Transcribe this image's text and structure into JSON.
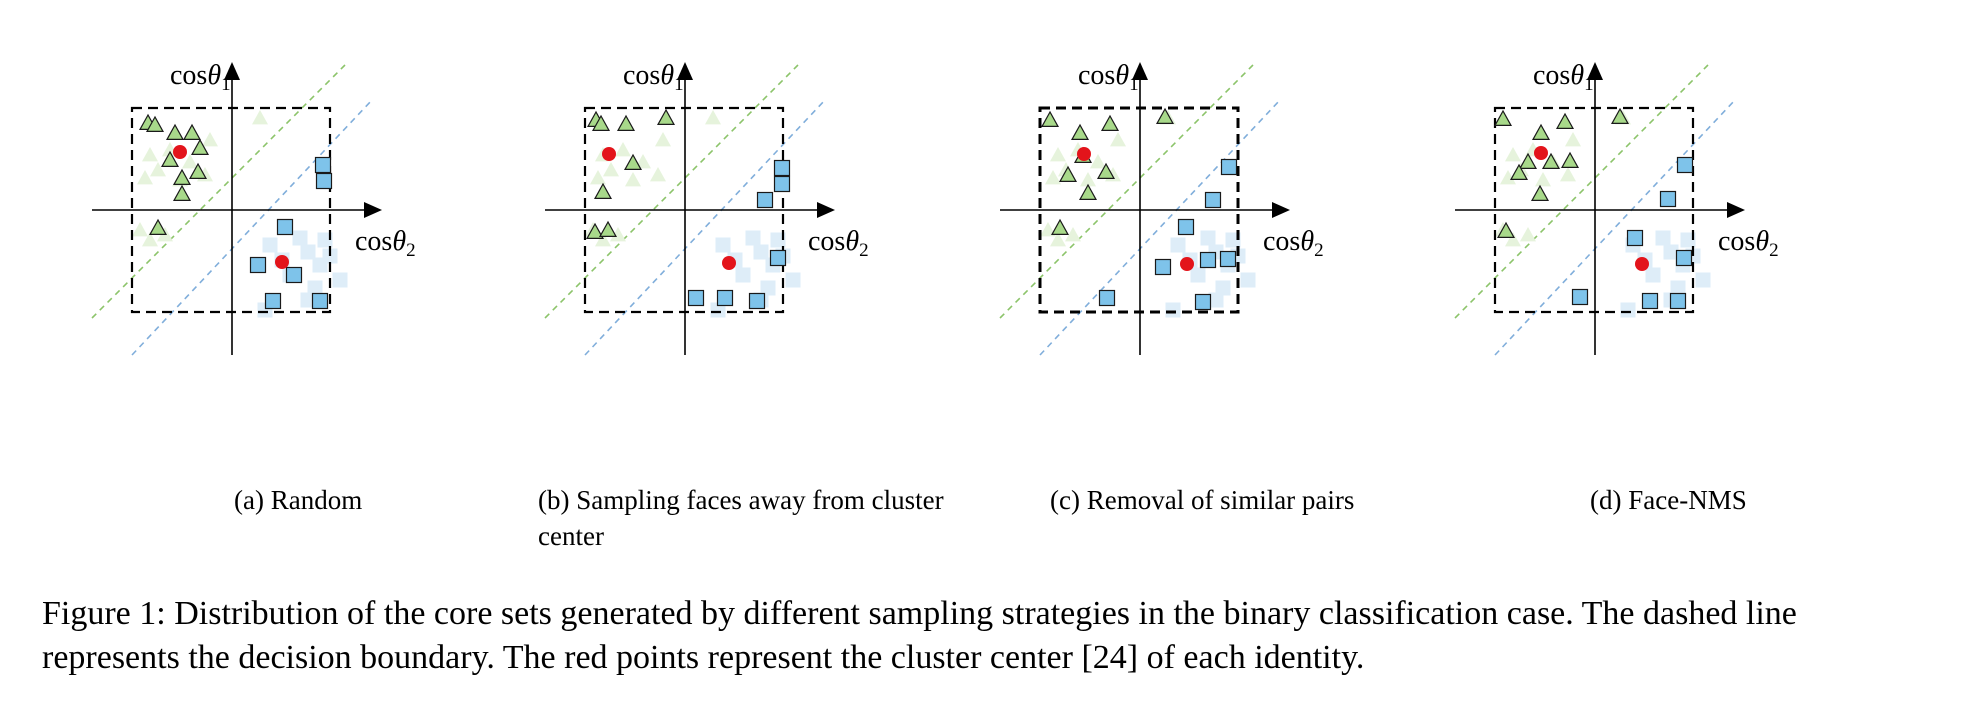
{
  "axis": {
    "y_label": "cos",
    "y_theta": "θ",
    "y_sub": "1",
    "x_label": "cos",
    "x_theta": "θ",
    "x_sub": "2"
  },
  "colors": {
    "triangle": "#a8d98a",
    "square": "#7ec3ea",
    "center": "#e3141b",
    "ghost_tri": "#e6f3dc",
    "ghost_sq": "#deedf8",
    "boundary_green": "#8cc46a",
    "boundary_blue": "#80aedb"
  },
  "icons": {
    "identity_1": "triangle-marker",
    "identity_2": "square-marker",
    "cluster_center": "red-dot"
  },
  "panels": [
    {
      "caption": "(a) Random"
    },
    {
      "caption": "(b) Sampling faces away from cluster center"
    },
    {
      "caption": "(c) Removal of similar pairs"
    },
    {
      "caption": "(d) Face-NMS"
    }
  ],
  "caption": "Figure 1: Distribution of the core sets generated by different sampling strategies in the binary classification case. The dashed line represents the decision boundary. The red points represent the cluster center [24] of each identity."
}
